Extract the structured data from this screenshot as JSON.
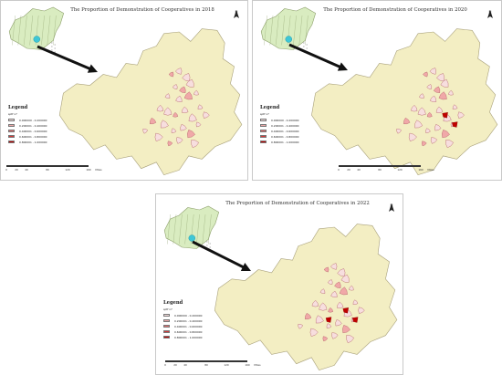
{
  "panels": [
    {
      "title": "The Proportion of Demonstration of Cooperatives in 2018",
      "highlighted_counties": 0,
      "legend": {
        "heading": "Legend",
        "field": "sptf n7",
        "classes": [
          {
            "label": "0.000000 - 0.200000",
            "color": "#f7dede"
          },
          {
            "label": "0.200001 - 0.400000",
            "color": "#f0a8a8"
          },
          {
            "label": "0.400001 - 0.600000",
            "color": "#e46f6f"
          },
          {
            "label": "0.600001 - 0.800000",
            "color": "#d83a3a"
          },
          {
            "label": "0.800001 - 1.000000",
            "color": "#c00000"
          }
        ]
      },
      "scale": {
        "ticks": [
          "0",
          "20",
          "40",
          "80",
          "120",
          "160"
        ],
        "unit": "Miles"
      }
    },
    {
      "title": "The Proportion of Demonstration of Cooperatives in 2020",
      "highlighted_counties": 2,
      "legend": {
        "heading": "Legend",
        "field": "sptf n7",
        "classes": [
          {
            "label": "0.000000 - 0.200000",
            "color": "#f7dede"
          },
          {
            "label": "0.200001 - 0.400000",
            "color": "#f0a8a8"
          },
          {
            "label": "0.400001 - 0.600000",
            "color": "#e46f6f"
          },
          {
            "label": "0.600001 - 0.800000",
            "color": "#d83a3a"
          },
          {
            "label": "0.800001 - 1.000000",
            "color": "#c00000"
          }
        ]
      },
      "scale": {
        "ticks": [
          "0",
          "20",
          "40",
          "80",
          "120",
          "160"
        ],
        "unit": "Miles"
      }
    },
    {
      "title": "The Proportion of Demonstration of Cooperatives in 2022",
      "highlighted_counties": 3,
      "legend": {
        "heading": "Legend",
        "field": "sptf n7",
        "classes": [
          {
            "label": "0.000000 - 0.200000",
            "color": "#f7dede"
          },
          {
            "label": "0.200001 - 0.400000",
            "color": "#f0a8a8"
          },
          {
            "label": "0.400001 - 0.600000",
            "color": "#e46f6f"
          },
          {
            "label": "0.600001 - 0.800000",
            "color": "#d83a3a"
          },
          {
            "label": "0.800001 - 1.000000",
            "color": "#c00000"
          }
        ]
      },
      "scale": {
        "ticks": [
          "0",
          "20",
          "40",
          "80",
          "120",
          "160"
        ],
        "unit": "Miles"
      }
    }
  ],
  "north_label": "N",
  "colors": {
    "province_fill": "#f3eec3",
    "province_stroke": "#a8a07a",
    "inset_fill": "#d9ecc0",
    "inset_stroke": "#8da06b",
    "inset_highlight": "#3ec7d6",
    "county_stroke": "#b05a65",
    "arrow": "#111111"
  }
}
